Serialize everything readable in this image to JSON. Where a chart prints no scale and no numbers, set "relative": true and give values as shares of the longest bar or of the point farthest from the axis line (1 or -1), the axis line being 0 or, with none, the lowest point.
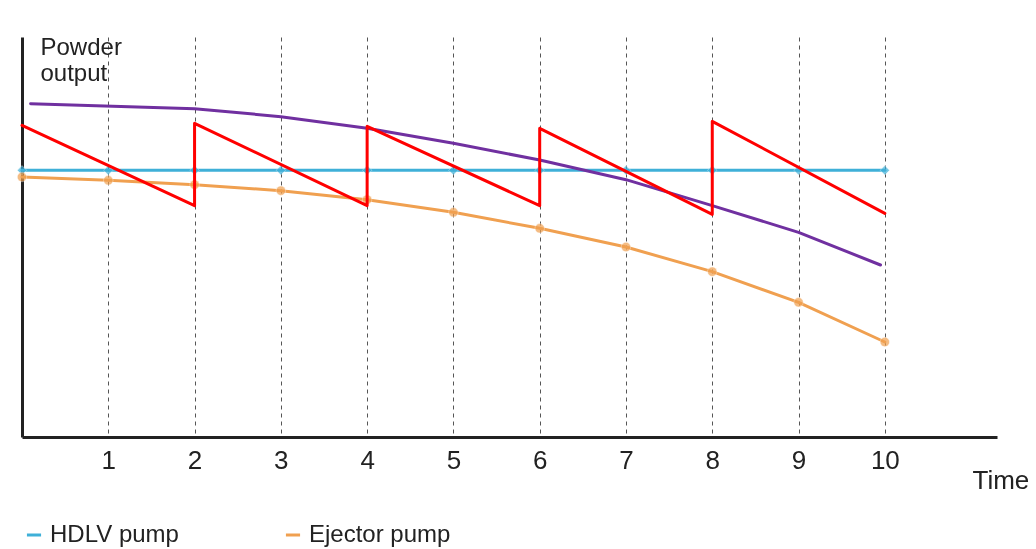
{
  "chart_data": {
    "type": "line",
    "relative": true,
    "xlabel": "Time",
    "ylabel": "Powder output",
    "xlim": [
      0,
      11.3
    ],
    "xticks": [
      1,
      2,
      3,
      4,
      5,
      6,
      7,
      8,
      9,
      10
    ],
    "grid": "x",
    "legend": "bottom",
    "series": [
      {
        "name": "HDLV pump",
        "color": "#3fb0d8",
        "marker": "diamond",
        "x": [
          0,
          1,
          2,
          3,
          4,
          5,
          6,
          7,
          8,
          9,
          10
        ],
        "values": [
          0.8,
          0.8,
          0.8,
          0.8,
          0.8,
          0.8,
          0.8,
          0.8,
          0.8,
          0.8,
          0.8
        ]
      },
      {
        "name": "Ejector pump",
        "color": "#f0a050",
        "marker": "circle",
        "x": [
          0,
          1,
          2,
          3,
          4,
          5,
          6,
          7,
          8,
          9,
          10
        ],
        "values": [
          0.78,
          0.77,
          0.757,
          0.739,
          0.712,
          0.674,
          0.626,
          0.57,
          0.496,
          0.404,
          0.285
        ]
      },
      {
        "color": "#7030a0",
        "marker": "none",
        "x": [
          0.1,
          2,
          3,
          4,
          5,
          6,
          7,
          8,
          9,
          9.95
        ],
        "values": [
          1,
          0.985,
          0.961,
          0.926,
          0.881,
          0.831,
          0.772,
          0.694,
          0.614,
          0.516
        ]
      },
      {
        "color": "#ff0000",
        "marker": "none",
        "x": [
          0,
          2,
          2,
          4,
          4,
          6,
          6,
          8,
          8,
          10
        ],
        "values": [
          0.935,
          0.694,
          0.941,
          0.694,
          0.932,
          0.694,
          0.926,
          0.668,
          0.947,
          0.671
        ]
      }
    ]
  }
}
